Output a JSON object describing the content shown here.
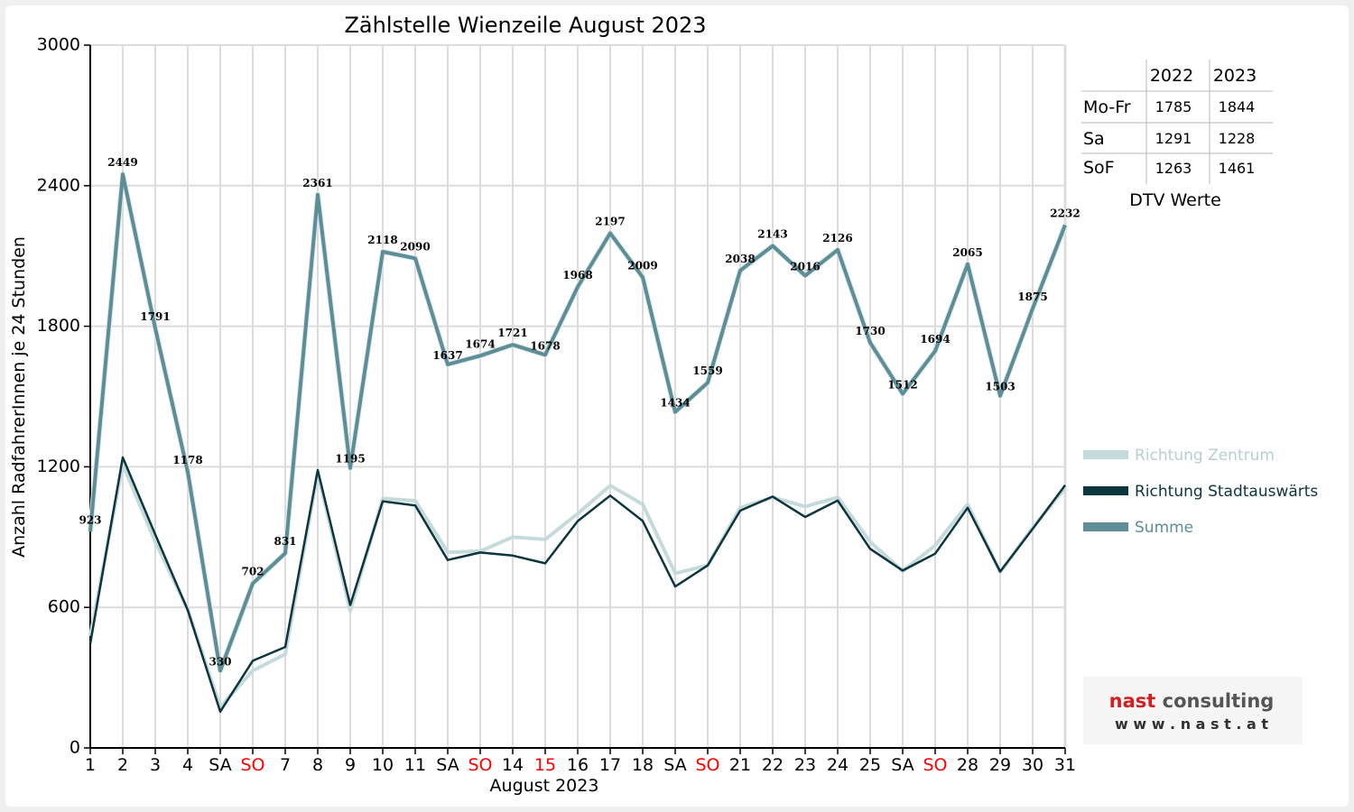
{
  "chart_data": {
    "type": "line",
    "title": "Zählstelle Wienzeile August 2023",
    "xlabel": "August 2023",
    "ylabel": "Anzahl RadfahrerInnen je 24 Stunden",
    "ylim": [
      0,
      3000
    ],
    "yticks": [
      0,
      600,
      1200,
      1800,
      2400,
      3000
    ],
    "grid": true,
    "legend_position": "right",
    "categories": [
      "1",
      "2",
      "3",
      "4",
      "SA",
      "SO",
      "7",
      "8",
      "9",
      "10",
      "11",
      "SA",
      "SO",
      "14",
      "15",
      "16",
      "17",
      "18",
      "SA",
      "SO",
      "21",
      "22",
      "23",
      "24",
      "25",
      "SA",
      "SO",
      "28",
      "29",
      "30",
      "31"
    ],
    "highlight_categories": [
      "SO",
      "15"
    ],
    "series": [
      {
        "name": "Richtung Zentrum",
        "color": "#c5dada",
        "values": [
          478,
          1210,
          880,
          590,
          175,
          330,
          400,
          1175,
          585,
          1065,
          1055,
          835,
          840,
          900,
          890,
          1000,
          1120,
          1040,
          745,
          780,
          1025,
          1070,
          1030,
          1070,
          880,
          755,
          865,
          1040,
          750,
          940,
          1110
        ]
      },
      {
        "name": "Richtung Stadtauswärts",
        "color": "#0d3540",
        "values": [
          445,
          1240,
          911,
          588,
          155,
          372,
          431,
          1186,
          610,
          1053,
          1035,
          802,
          834,
          821,
          788,
          968,
          1077,
          969,
          689,
          779,
          1013,
          1073,
          986,
          1056,
          850,
          757,
          829,
          1025,
          753,
          935,
          1122
        ]
      },
      {
        "name": "Summe",
        "color": "#5d8e97",
        "values": [
          923,
          2449,
          1791,
          1178,
          330,
          702,
          831,
          2361,
          1195,
          2118,
          2090,
          1637,
          1674,
          1721,
          1678,
          1968,
          2197,
          2009,
          1434,
          1559,
          2038,
          2143,
          2016,
          2126,
          1730,
          1512,
          1694,
          2065,
          1503,
          1875,
          2232
        ]
      }
    ],
    "data_labels": [
      "923",
      "2449",
      "1791",
      "1178",
      "330",
      "702",
      "831",
      "2361",
      "1195",
      "2118",
      "2090",
      "1637",
      "1674",
      "1721",
      "1678",
      "1968",
      "2197",
      "2009",
      "1434",
      "1559",
      "2038",
      "2143",
      "2016",
      "2126",
      "1730",
      "1512",
      "1694",
      "2065",
      "1503",
      "1875",
      "2232"
    ]
  },
  "table": {
    "headers": [
      "2022",
      "2023"
    ],
    "rows": [
      {
        "label": "Mo-Fr",
        "v2022": "1785",
        "v2023": "1844"
      },
      {
        "label": "Sa",
        "v2022": "1291",
        "v2023": "1228"
      },
      {
        "label": "SoF",
        "v2022": "1263",
        "v2023": "1461"
      }
    ],
    "caption": "DTV Werte"
  },
  "logo": {
    "name": "nast consulting",
    "url": "w w w . n a s t . a t"
  },
  "colors": {
    "background": "#f0f0f0",
    "plot_background": "#ffffff",
    "grid": "#dcdcdc",
    "holiday": "#ff0000",
    "logo_red": "#d21f1f"
  }
}
